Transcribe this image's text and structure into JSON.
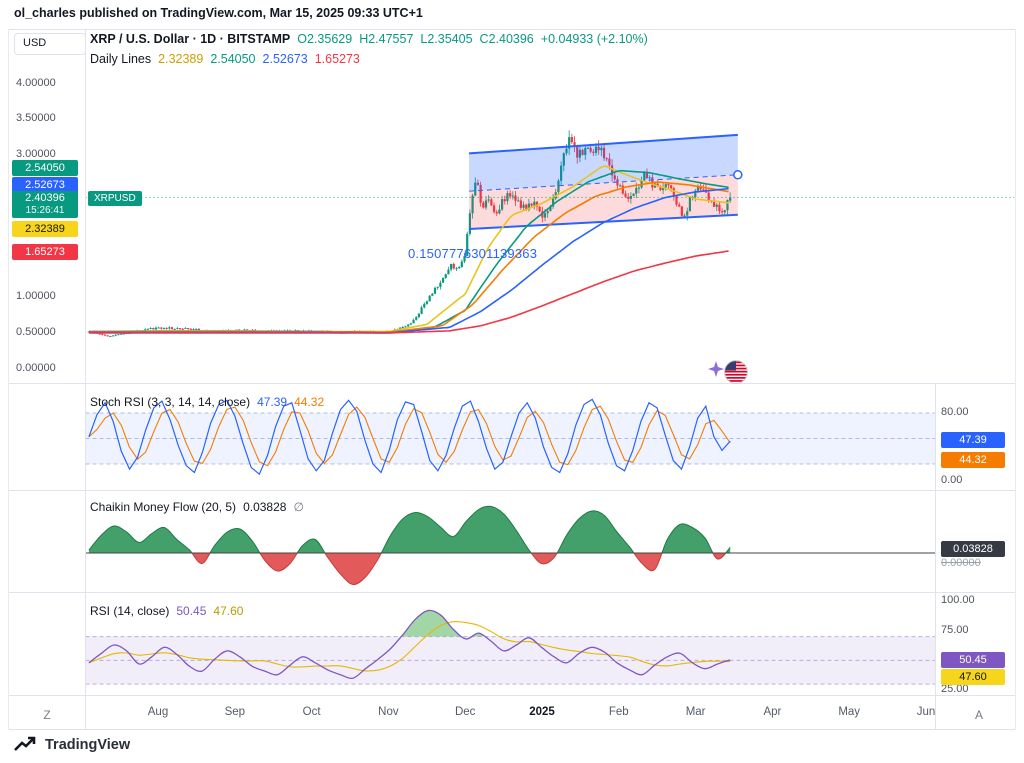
{
  "header": {
    "publish_line": "ol_charles published on TradingView.com, Mar 15, 2025 09:33 UTC+1"
  },
  "main_chart": {
    "currency_label": "USD",
    "title": "XRP / U.S. Dollar · 1D · BITSTAMP",
    "ohlc_items": [
      {
        "label": "O",
        "value": "2.35629"
      },
      {
        "label": "H",
        "value": "2.47557"
      },
      {
        "label": "L",
        "value": "2.35405"
      },
      {
        "label": "C",
        "value": "2.40396"
      }
    ],
    "change_text": "+0.04933 (+2.10%)",
    "daily_lines": {
      "label": "Daily Lines",
      "values": [
        {
          "text": "2.32389",
          "color": "#c9a100"
        },
        {
          "text": "2.54050",
          "color": "#089981"
        },
        {
          "text": "2.52673",
          "color": "#2962ff"
        },
        {
          "text": "1.65273",
          "color": "#f23645"
        }
      ]
    },
    "symbol_tag": "XRPUSD",
    "countdown": "15:26:41",
    "annotation": "0.1507776301139363"
  },
  "indicators": {
    "stoch": {
      "name": "Stoch RSI (3, 3, 14, 14, close)"
    },
    "cmf": {
      "name": "Chaikin Money Flow (20, 5)",
      "empty_symbol": "∅",
      "zero_label": "0.00000"
    },
    "rsi": {
      "name": "RSI (14, close)"
    }
  },
  "time_axis": {
    "left_button": "Z",
    "right_button": "A",
    "labels": [
      {
        "text": "Aug"
      },
      {
        "text": "Sep"
      },
      {
        "text": "Oct"
      },
      {
        "text": "Nov"
      },
      {
        "text": "Dec"
      },
      {
        "text": "2025",
        "emphasis": true
      },
      {
        "text": "Feb"
      },
      {
        "text": "Mar"
      },
      {
        "text": "Apr"
      },
      {
        "text": "May"
      },
      {
        "text": "Jun"
      }
    ]
  },
  "footer": {
    "brand": "TradingView"
  },
  "chart_data": [
    {
      "type": "candlestick",
      "title": "XRP / U.S. Dollar · 1D · BITSTAMP",
      "exchange": "BITSTAMP",
      "timeframe": "1D",
      "ylim": [
        0,
        4.3
      ],
      "y_ticks": [
        4.0,
        3.5,
        3.0,
        1.0,
        0.5,
        0.0
      ],
      "x_ticks": [
        "Aug",
        "Sep",
        "Oct",
        "Nov",
        "Dec",
        "2025",
        "Feb",
        "Mar",
        "Apr",
        "May",
        "Jun"
      ],
      "ohlc_last": {
        "open": 2.35629,
        "high": 2.47557,
        "low": 2.35405,
        "close": 2.40396,
        "change": "+0.04933 (+2.10%)"
      },
      "current_price": 2.40396,
      "colors": {
        "up": "#089981",
        "down": "#f23645"
      },
      "price_path": [
        [
          0.1,
          0.52
        ],
        [
          0.35,
          0.46
        ],
        [
          0.6,
          0.5
        ],
        [
          0.9,
          0.56
        ],
        [
          1.2,
          0.57
        ],
        [
          1.5,
          0.55
        ],
        [
          1.8,
          0.52
        ],
        [
          2.1,
          0.54
        ],
        [
          2.4,
          0.52
        ],
        [
          2.7,
          0.53
        ],
        [
          3.0,
          0.52
        ],
        [
          3.3,
          0.51
        ],
        [
          3.6,
          0.52
        ],
        [
          3.9,
          0.51
        ],
        [
          4.1,
          0.54
        ],
        [
          4.3,
          0.63
        ],
        [
          4.5,
          0.95
        ],
        [
          4.65,
          1.18
        ],
        [
          4.8,
          1.45
        ],
        [
          4.9,
          1.38
        ],
        [
          5.0,
          1.6
        ],
        [
          5.08,
          2.4
        ],
        [
          5.15,
          2.62
        ],
        [
          5.22,
          2.28
        ],
        [
          5.3,
          2.35
        ],
        [
          5.4,
          2.18
        ],
        [
          5.5,
          2.38
        ],
        [
          5.6,
          2.48
        ],
        [
          5.7,
          2.32
        ],
        [
          5.8,
          2.22
        ],
        [
          5.9,
          2.38
        ],
        [
          6.0,
          2.08
        ],
        [
          6.1,
          2.28
        ],
        [
          6.2,
          2.5
        ],
        [
          6.3,
          3.12
        ],
        [
          6.38,
          3.25
        ],
        [
          6.45,
          2.95
        ],
        [
          6.55,
          3.08
        ],
        [
          6.65,
          2.98
        ],
        [
          6.75,
          3.12
        ],
        [
          6.85,
          2.9
        ],
        [
          6.95,
          2.62
        ],
        [
          7.05,
          2.48
        ],
        [
          7.15,
          2.38
        ],
        [
          7.25,
          2.58
        ],
        [
          7.35,
          2.72
        ],
        [
          7.45,
          2.58
        ],
        [
          7.55,
          2.46
        ],
        [
          7.65,
          2.62
        ],
        [
          7.75,
          2.28
        ],
        [
          7.85,
          2.14
        ],
        [
          7.95,
          2.42
        ],
        [
          8.05,
          2.56
        ],
        [
          8.15,
          2.42
        ],
        [
          8.25,
          2.28
        ],
        [
          8.35,
          2.2
        ],
        [
          8.42,
          2.36
        ],
        [
          8.45,
          2.404
        ]
      ],
      "ma_lines": [
        {
          "name": "yellow",
          "color": "#e8c41a",
          "last": 2.32389,
          "points": [
            [
              0.1,
              0.52
            ],
            [
              1,
              0.53
            ],
            [
              2,
              0.53
            ],
            [
              3,
              0.52
            ],
            [
              4,
              0.52
            ],
            [
              4.5,
              0.62
            ],
            [
              5,
              1.05
            ],
            [
              5.3,
              1.7
            ],
            [
              5.6,
              2.15
            ],
            [
              6,
              2.32
            ],
            [
              6.4,
              2.55
            ],
            [
              6.8,
              2.85
            ],
            [
              7.1,
              2.72
            ],
            [
              7.4,
              2.6
            ],
            [
              7.7,
              2.5
            ],
            [
              8,
              2.38
            ],
            [
              8.45,
              2.324
            ]
          ]
        },
        {
          "name": "green",
          "color": "#089981",
          "last": 2.5405,
          "points": [
            [
              0.1,
              0.52
            ],
            [
              1,
              0.52
            ],
            [
              2,
              0.52
            ],
            [
              3,
              0.52
            ],
            [
              4,
              0.51
            ],
            [
              4.6,
              0.58
            ],
            [
              5,
              0.82
            ],
            [
              5.4,
              1.45
            ],
            [
              5.8,
              2.0
            ],
            [
              6.2,
              2.35
            ],
            [
              6.6,
              2.62
            ],
            [
              7,
              2.78
            ],
            [
              7.4,
              2.75
            ],
            [
              7.8,
              2.66
            ],
            [
              8.1,
              2.6
            ],
            [
              8.45,
              2.54
            ]
          ]
        },
        {
          "name": "orange",
          "color": "#f57c00",
          "last": 2.48,
          "points": [
            [
              0.1,
              0.52
            ],
            [
              1,
              0.52
            ],
            [
              2,
              0.52
            ],
            [
              3,
              0.52
            ],
            [
              4,
              0.51
            ],
            [
              4.7,
              0.6
            ],
            [
              5.1,
              0.9
            ],
            [
              5.5,
              1.4
            ],
            [
              5.9,
              1.85
            ],
            [
              6.3,
              2.18
            ],
            [
              6.7,
              2.42
            ],
            [
              7.1,
              2.55
            ],
            [
              7.5,
              2.62
            ],
            [
              7.9,
              2.58
            ],
            [
              8.45,
              2.48
            ]
          ]
        },
        {
          "name": "blue",
          "color": "#2962ff",
          "last": 2.52673,
          "points": [
            [
              0.1,
              0.51
            ],
            [
              1,
              0.51
            ],
            [
              2,
              0.51
            ],
            [
              3,
              0.51
            ],
            [
              4,
              0.5
            ],
            [
              4.8,
              0.58
            ],
            [
              5.2,
              0.8
            ],
            [
              5.6,
              1.1
            ],
            [
              6,
              1.45
            ],
            [
              6.4,
              1.78
            ],
            [
              6.8,
              2.05
            ],
            [
              7.2,
              2.25
            ],
            [
              7.6,
              2.4
            ],
            [
              8,
              2.48
            ],
            [
              8.45,
              2.527
            ]
          ]
        },
        {
          "name": "red",
          "color": "#f23645",
          "last": 1.65273,
          "points": [
            [
              0.1,
              0.5
            ],
            [
              1,
              0.5
            ],
            [
              2,
              0.5
            ],
            [
              3,
              0.5
            ],
            [
              4,
              0.5
            ],
            [
              4.8,
              0.53
            ],
            [
              5.2,
              0.6
            ],
            [
              5.6,
              0.72
            ],
            [
              6,
              0.88
            ],
            [
              6.4,
              1.05
            ],
            [
              6.8,
              1.22
            ],
            [
              7.2,
              1.37
            ],
            [
              7.6,
              1.48
            ],
            [
              8,
              1.58
            ],
            [
              8.45,
              1.653
            ]
          ]
        }
      ],
      "price_badges": [
        {
          "value": 2.5405,
          "color": "#089981"
        },
        {
          "value": 2.52673,
          "color": "#2962ff"
        },
        {
          "value": 2.32389,
          "color": "#f7d51d",
          "text": "#131722"
        },
        {
          "value": 1.65273,
          "color": "#f23645"
        }
      ],
      "channel": {
        "m_start": 5.05,
        "m_end": 8.55,
        "top_start": 3.02,
        "top_end": 3.28,
        "bottom_start": 1.96,
        "bottom_end": 2.16,
        "stroke": "#2962ff",
        "fill_top": "rgba(41,98,255,0.25)",
        "fill_bottom": "rgba(242,54,69,0.18)"
      }
    },
    {
      "type": "line",
      "name": "Stoch RSI (3, 3, 14, 14, close)",
      "k_last": 47.39,
      "d_last": 44.32,
      "levels": [
        80,
        50,
        20
      ],
      "axis_labels": [
        80,
        0
      ],
      "range": [
        0,
        100
      ],
      "colors": {
        "k": "#2962ff",
        "d": "#f57c00",
        "band": "rgba(41,98,255,0.08)",
        "level": "#7393c9"
      },
      "k_series": [
        52,
        78,
        92,
        70,
        35,
        14,
        28,
        60,
        86,
        94,
        72,
        42,
        18,
        10,
        34,
        68,
        90,
        95,
        76,
        44,
        16,
        8,
        30,
        64,
        88,
        92,
        60,
        26,
        12,
        24,
        56,
        84,
        95,
        82,
        48,
        20,
        10,
        36,
        72,
        93,
        90,
        58,
        24,
        12,
        30,
        62,
        88,
        94,
        70,
        38,
        14,
        22,
        52,
        80,
        92,
        74,
        40,
        16,
        10,
        32,
        66,
        90,
        96,
        78,
        44,
        18,
        12,
        36,
        70,
        92,
        86,
        54,
        24,
        14,
        40,
        74,
        88,
        52,
        36,
        47
      ]
    },
    {
      "type": "area",
      "name": "Chaikin Money Flow (20, 5)",
      "last": 0.03828,
      "colors": {
        "pos": "#44a06a",
        "pos_line": "#1e7a45",
        "neg": "#e25a5a",
        "neg_line": "#c43d3d",
        "zero": "#444444",
        "badge": "#363a45"
      },
      "series": [
        0.02,
        0.12,
        0.18,
        0.14,
        0.07,
        0.13,
        0.17,
        0.09,
        0.02,
        -0.07,
        0.05,
        0.14,
        0.16,
        0.08,
        -0.05,
        -0.12,
        -0.07,
        0.05,
        0.09,
        -0.03,
        -0.14,
        -0.21,
        -0.16,
        -0.04,
        0.12,
        0.23,
        0.27,
        0.24,
        0.17,
        0.11,
        0.21,
        0.29,
        0.31,
        0.26,
        0.15,
        0.02,
        -0.07,
        -0.03,
        0.12,
        0.23,
        0.28,
        0.25,
        0.14,
        0.04,
        -0.07,
        -0.11,
        0.09,
        0.19,
        0.17,
        0.1,
        -0.04,
        0.038
      ]
    },
    {
      "type": "line",
      "name": "RSI (14, close)",
      "last": 50.45,
      "ma_last": 47.6,
      "levels": [
        70,
        50,
        30
      ],
      "axis_labels": [
        100,
        75,
        25
      ],
      "colors": {
        "rsi": "#7e57c2",
        "ma": "#e5b800",
        "band": "rgba(126,87,194,0.10)",
        "level": "#7e57c2",
        "overbought_fill": "rgba(102,187,106,0.6)",
        "badge_ma": "#f7d51d"
      },
      "series": [
        48,
        56,
        63,
        58,
        47,
        53,
        61,
        55,
        45,
        41,
        51,
        58,
        53,
        45,
        41,
        38,
        46,
        53,
        48,
        42,
        38,
        35,
        43,
        51,
        60,
        72,
        85,
        92,
        88,
        76,
        68,
        73,
        66,
        58,
        63,
        69,
        61,
        53,
        48,
        56,
        61,
        57,
        48,
        42,
        38,
        46,
        53,
        56,
        48,
        43,
        47,
        50.45
      ]
    }
  ]
}
